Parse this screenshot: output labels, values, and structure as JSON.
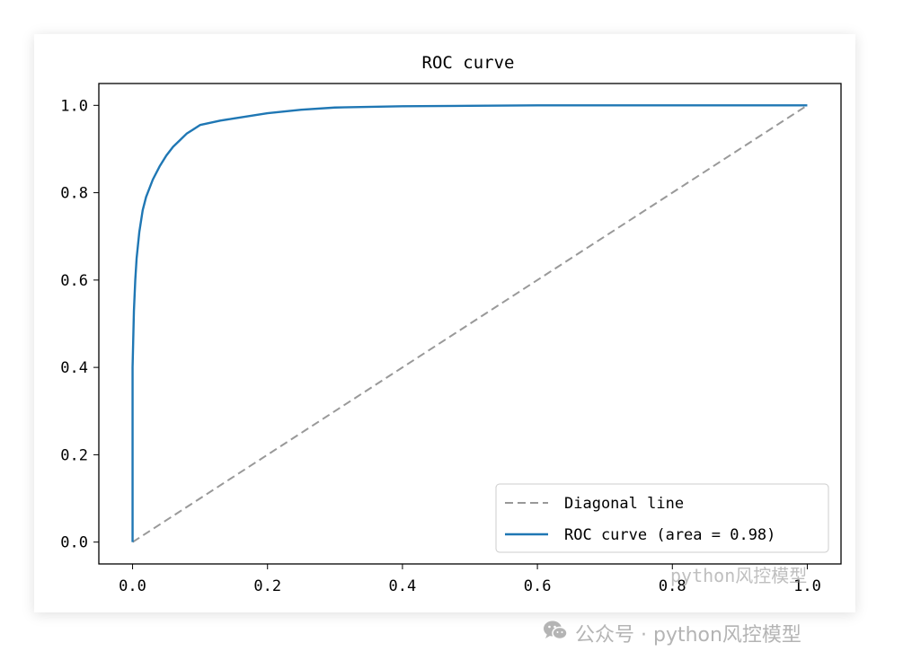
{
  "chart_data": {
    "type": "line",
    "title": "ROC curve",
    "xlabel": "",
    "ylabel": "",
    "xlim": [
      -0.05,
      1.05
    ],
    "ylim": [
      -0.05,
      1.05
    ],
    "xticks": [
      0.0,
      0.2,
      0.4,
      0.6,
      0.8,
      1.0
    ],
    "yticks": [
      0.0,
      0.2,
      0.4,
      0.6,
      0.8,
      1.0
    ],
    "xtick_labels": [
      "0.0",
      "0.2",
      "0.4",
      "0.6",
      "0.8",
      "1.0"
    ],
    "ytick_labels": [
      "0.0",
      "0.2",
      "0.4",
      "0.6",
      "0.8",
      "1.0"
    ],
    "grid": false,
    "legend_position": "lower right",
    "series": [
      {
        "name": "Diagonal line",
        "color": "#999999",
        "style": "dashed",
        "x": [
          0,
          1
        ],
        "y": [
          0,
          1
        ]
      },
      {
        "name": "ROC curve (area = 0.98)",
        "color": "#1f77b4",
        "style": "solid",
        "x": [
          0.0,
          0.0,
          0.002,
          0.004,
          0.006,
          0.01,
          0.015,
          0.02,
          0.03,
          0.04,
          0.05,
          0.06,
          0.07,
          0.08,
          0.09,
          0.1,
          0.13,
          0.15,
          0.2,
          0.25,
          0.3,
          0.4,
          0.5,
          0.6,
          0.7,
          0.8,
          0.9,
          1.0
        ],
        "y": [
          0.0,
          0.4,
          0.53,
          0.6,
          0.65,
          0.71,
          0.76,
          0.79,
          0.83,
          0.86,
          0.885,
          0.905,
          0.92,
          0.935,
          0.945,
          0.955,
          0.965,
          0.97,
          0.982,
          0.99,
          0.995,
          0.998,
          0.999,
          1.0,
          1.0,
          1.0,
          1.0,
          1.0
        ]
      }
    ]
  },
  "watermark": {
    "text": "公众号 · python风控模型",
    "icon": "wechat-icon",
    "overlay_text": "python风控模型"
  }
}
